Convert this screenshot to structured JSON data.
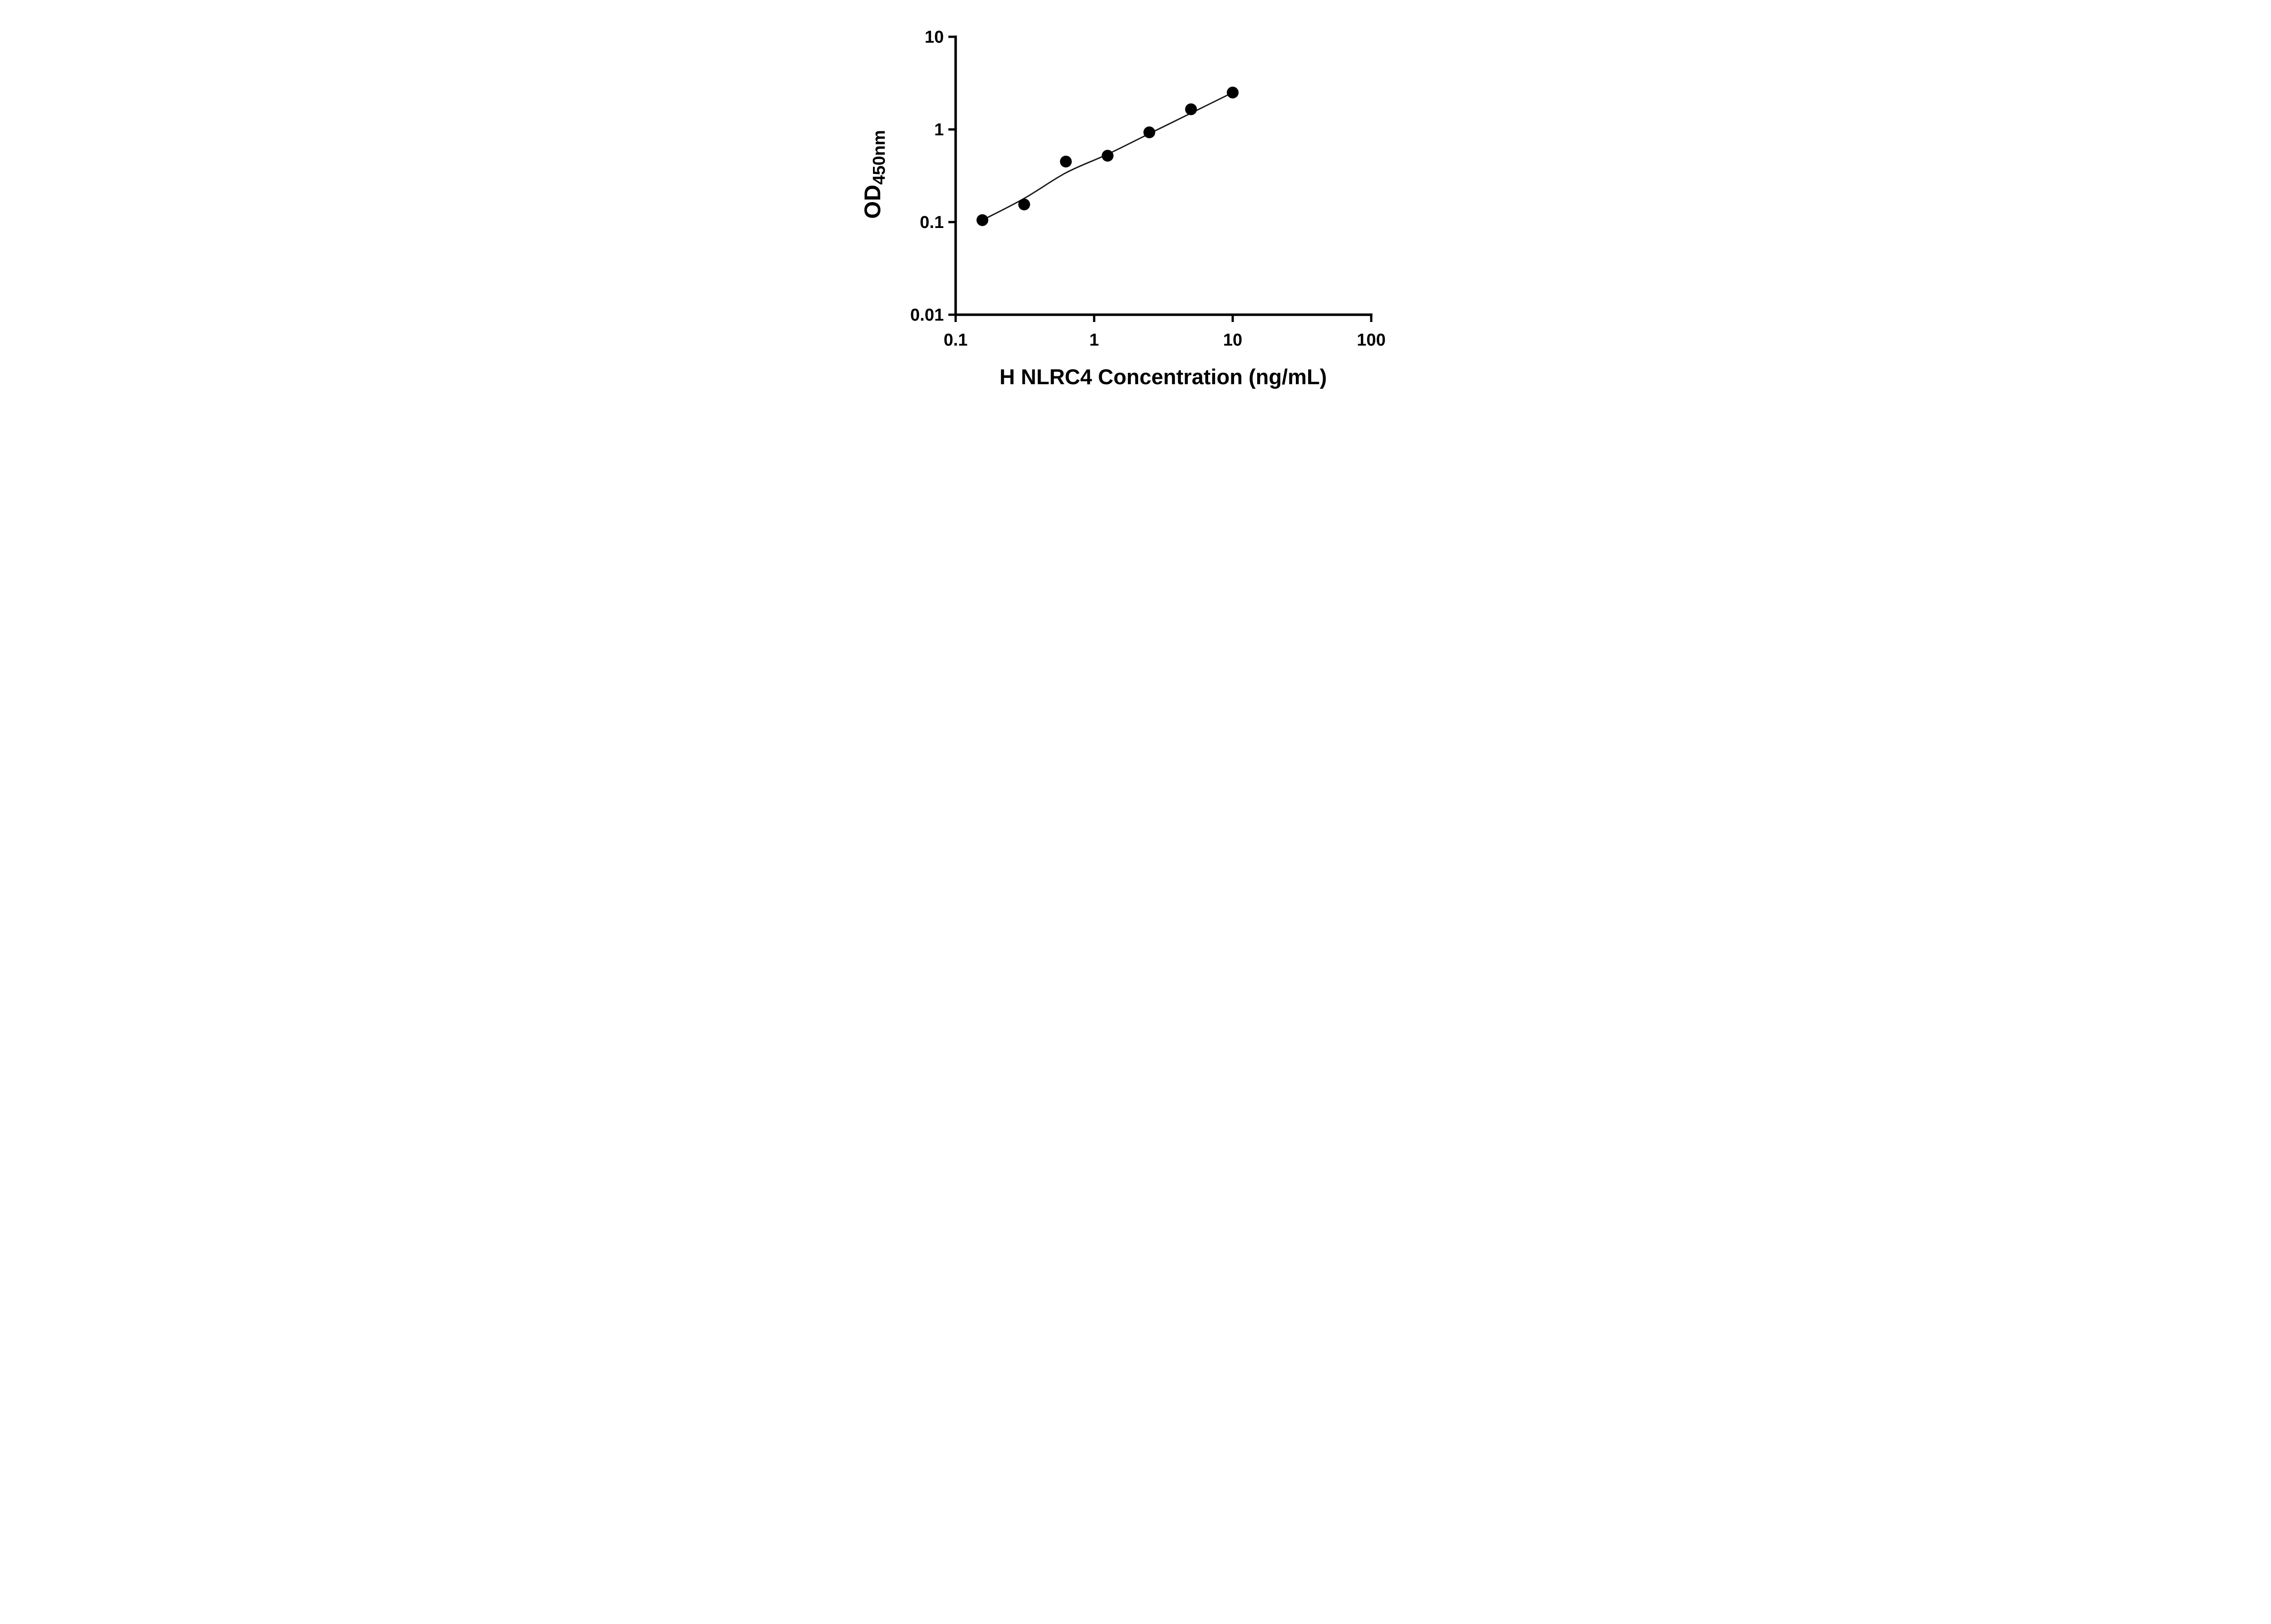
{
  "chart_data": {
    "type": "scatter",
    "title": "",
    "xlabel": "H NLRC4 Concentration (ng/mL)",
    "ylabel_main": "OD",
    "ylabel_sub": "450nm",
    "x_scale": "log",
    "y_scale": "log",
    "xlim": [
      0.1,
      100
    ],
    "ylim": [
      0.01,
      10
    ],
    "grid": false,
    "legend": "none",
    "x_ticks": [
      {
        "value": 0.1,
        "label": "0.1"
      },
      {
        "value": 1,
        "label": "1"
      },
      {
        "value": 10,
        "label": "10"
      },
      {
        "value": 100,
        "label": "100"
      }
    ],
    "y_ticks": [
      {
        "value": 0.01,
        "label": "0.01"
      },
      {
        "value": 0.1,
        "label": "0.1"
      },
      {
        "value": 1,
        "label": "1"
      },
      {
        "value": 10,
        "label": "10"
      }
    ],
    "points": [
      {
        "x": 0.156,
        "y": 0.105
      },
      {
        "x": 0.3125,
        "y": 0.155
      },
      {
        "x": 0.625,
        "y": 0.45
      },
      {
        "x": 1.25,
        "y": 0.52
      },
      {
        "x": 2.5,
        "y": 0.93
      },
      {
        "x": 5,
        "y": 1.65
      },
      {
        "x": 10,
        "y": 2.5
      }
    ],
    "fit_curve": [
      {
        "x": 0.156,
        "y": 0.105
      },
      {
        "x": 0.3125,
        "y": 0.18
      },
      {
        "x": 0.625,
        "y": 0.34
      },
      {
        "x": 1.25,
        "y": 0.54
      },
      {
        "x": 2.5,
        "y": 0.9
      },
      {
        "x": 5,
        "y": 1.5
      },
      {
        "x": 10,
        "y": 2.5
      }
    ],
    "colors": {
      "points": "#000000",
      "curve": "#1a1a1a",
      "axis": "#000000",
      "text": "#000000",
      "background": "#ffffff"
    }
  }
}
